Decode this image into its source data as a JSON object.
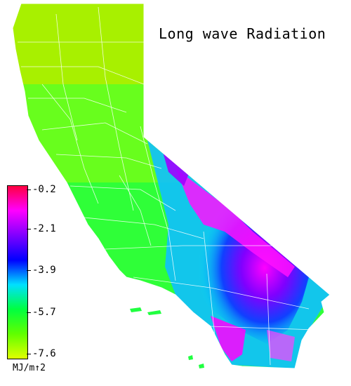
{
  "map": {
    "title": "Long wave Radiation",
    "units": "MJ/m↑2"
  },
  "legend": {
    "ticks": [
      "-0.2",
      "-2.1",
      "-3.9",
      "-5.7",
      "-7.6"
    ],
    "colors": {
      "top": "#ff0040",
      "magenta": "#ff00ff",
      "violet": "#8000ff",
      "blue": "#0000ff",
      "cyan": "#00e0ff",
      "green": "#00ff40",
      "lime": "#60ff00",
      "bottom": "#e0ff00"
    }
  }
}
